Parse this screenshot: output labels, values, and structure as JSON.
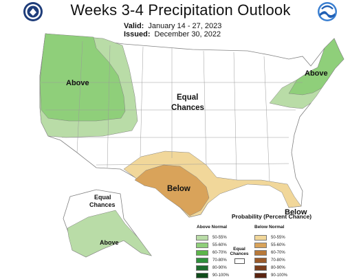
{
  "title": "Weeks 3-4 Precipitation Outlook",
  "valid_label": "Valid:",
  "valid_value": "January 14 - 27, 2023",
  "issued_label": "Issued:",
  "issued_value": "December 30, 2022",
  "region_labels": {
    "west_above": "Above",
    "northeast_above": "Above",
    "equal_chances_center_1": "Equal",
    "equal_chances_center_2": "Chances",
    "south_below": "Below",
    "florida_below": "Below",
    "alaska_equal_1": "Equal",
    "alaska_equal_2": "Chances",
    "alaska_above": "Above"
  },
  "legend": {
    "title": "Probability (Percent Chance)",
    "above_header": "Above Normal",
    "below_header": "Below Normal",
    "equal_label_1": "Equal",
    "equal_label_2": "Chances",
    "above_items": [
      {
        "label": "50-55%",
        "color": "#b9dca7"
      },
      {
        "label": "55-60%",
        "color": "#8fcf7a"
      },
      {
        "label": "60-70%",
        "color": "#5cb54a"
      },
      {
        "label": "70-80%",
        "color": "#2e8f3b"
      },
      {
        "label": "80-90%",
        "color": "#1c6b2c"
      },
      {
        "label": "90-100%",
        "color": "#0f4b1a"
      }
    ],
    "below_items": [
      {
        "label": "50-55%",
        "color": "#f1d79a"
      },
      {
        "label": "55-60%",
        "color": "#d9a35a"
      },
      {
        "label": "60-70%",
        "color": "#b8793a"
      },
      {
        "label": "70-80%",
        "color": "#9a5a2a"
      },
      {
        "label": "80-90%",
        "color": "#7a3d1c"
      },
      {
        "label": "90-100%",
        "color": "#5a2410"
      }
    ]
  },
  "colors": {
    "above_light": "#b9dca7",
    "above_mid": "#8fcf7a",
    "below_light": "#f1d79a",
    "below_mid": "#d9a35a"
  },
  "logos": [
    "noaa-cpc-seal-icon",
    "noaa-logo-icon"
  ]
}
